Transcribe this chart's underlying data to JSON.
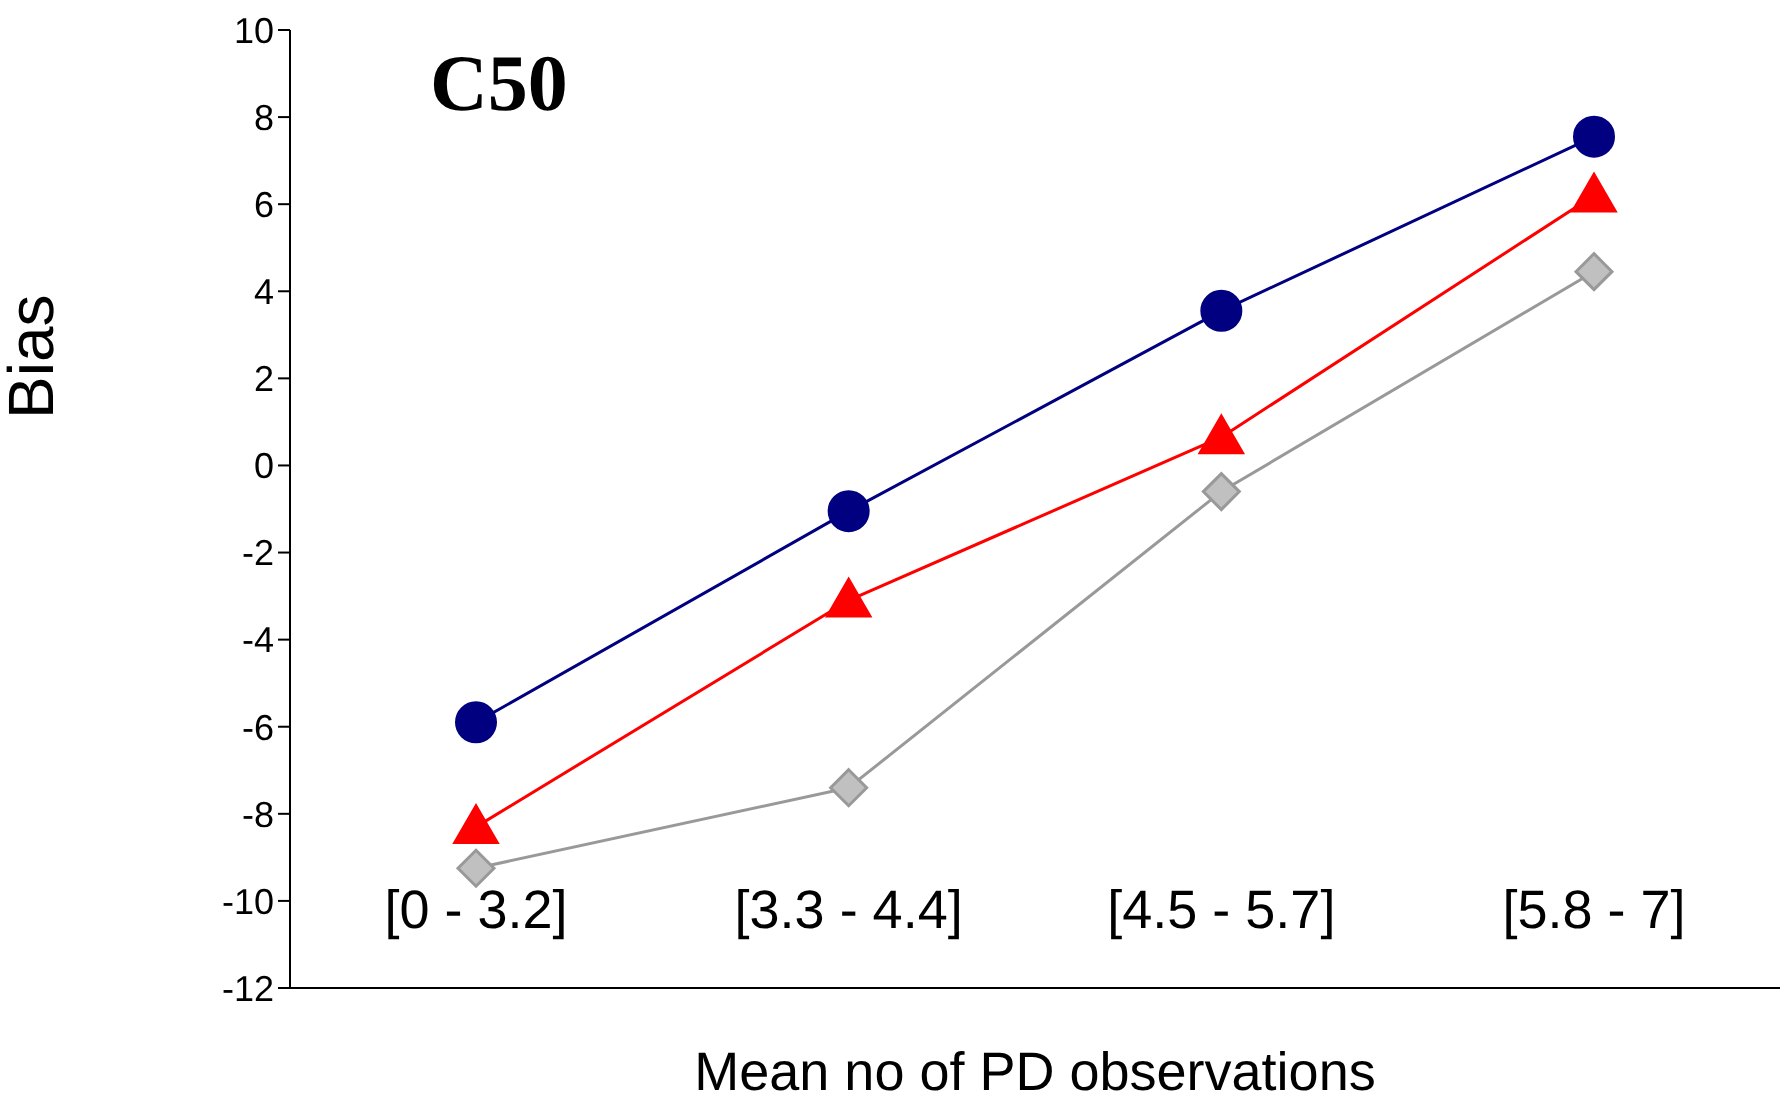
{
  "chart_data": {
    "type": "line",
    "title": "C50",
    "xlabel": "Mean no of PD observations",
    "ylabel": "Bias",
    "categories": [
      "[0 - 3.2]",
      "[3.3 - 4.4]",
      "[4.5 - 5.7]",
      "[5.8 - 7]"
    ],
    "series": [
      {
        "color": "#000080",
        "marker": "circle",
        "values": [
          -5.9,
          -1.05,
          3.55,
          7.55
        ]
      },
      {
        "color": "#ff0000",
        "marker": "triangle",
        "values": [
          -8.3,
          -3.1,
          0.65,
          6.2
        ]
      },
      {
        "color": "#999999",
        "marker": "diamond",
        "values": [
          -9.25,
          -7.4,
          -0.6,
          4.45
        ]
      }
    ],
    "ylim": [
      -12,
      10
    ],
    "yticks": [
      -12,
      -10,
      -8,
      -6,
      -4,
      -2,
      0,
      2,
      4,
      6,
      8,
      10
    ],
    "grid": false,
    "legend": false
  }
}
